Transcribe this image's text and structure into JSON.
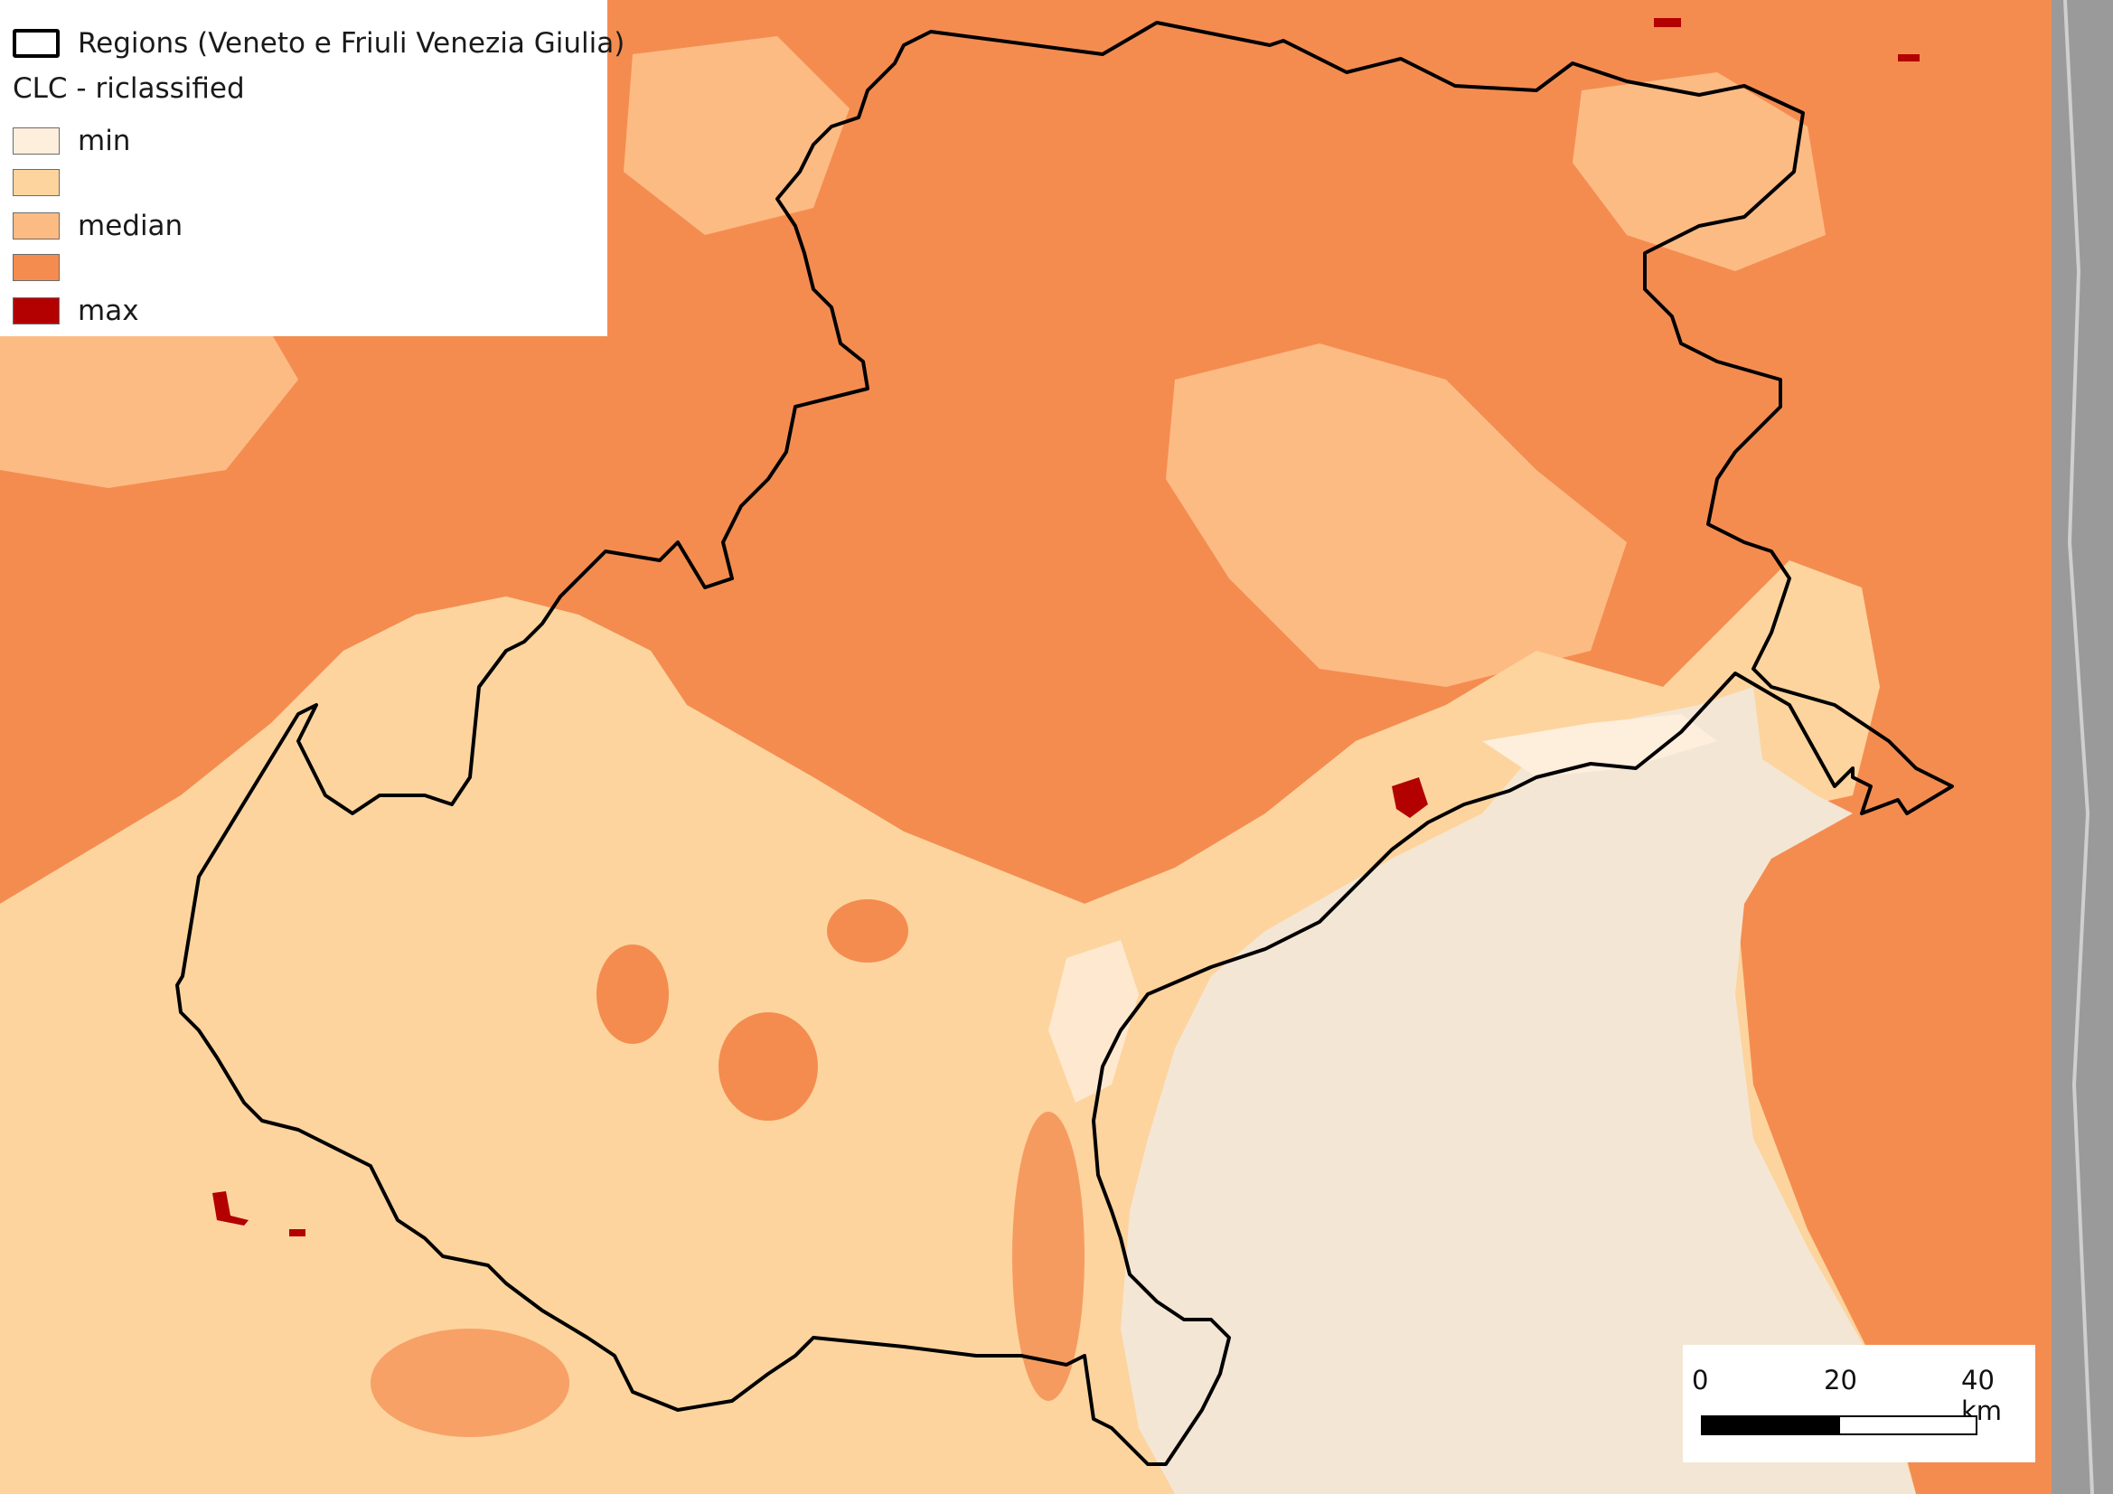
{
  "legend": {
    "regions_label": "Regions (Veneto e Friuli Venezia Giulia)",
    "clc_heading": "CLC - riclassified",
    "classes": [
      {
        "label": "min",
        "color": "#feeedc"
      },
      {
        "label": "",
        "color": "#fdd49e"
      },
      {
        "label": "median",
        "color": "#fdbb84"
      },
      {
        "label": "",
        "color": "#f48c50"
      },
      {
        "label": "max",
        "color": "#b30000"
      }
    ]
  },
  "scale_bar": {
    "ticks": [
      "0",
      "20",
      "40 km"
    ]
  },
  "map": {
    "sea_color": "#f4e6d4",
    "boundary_color": "#000000",
    "basemap_color": "#9a9a9a"
  }
}
